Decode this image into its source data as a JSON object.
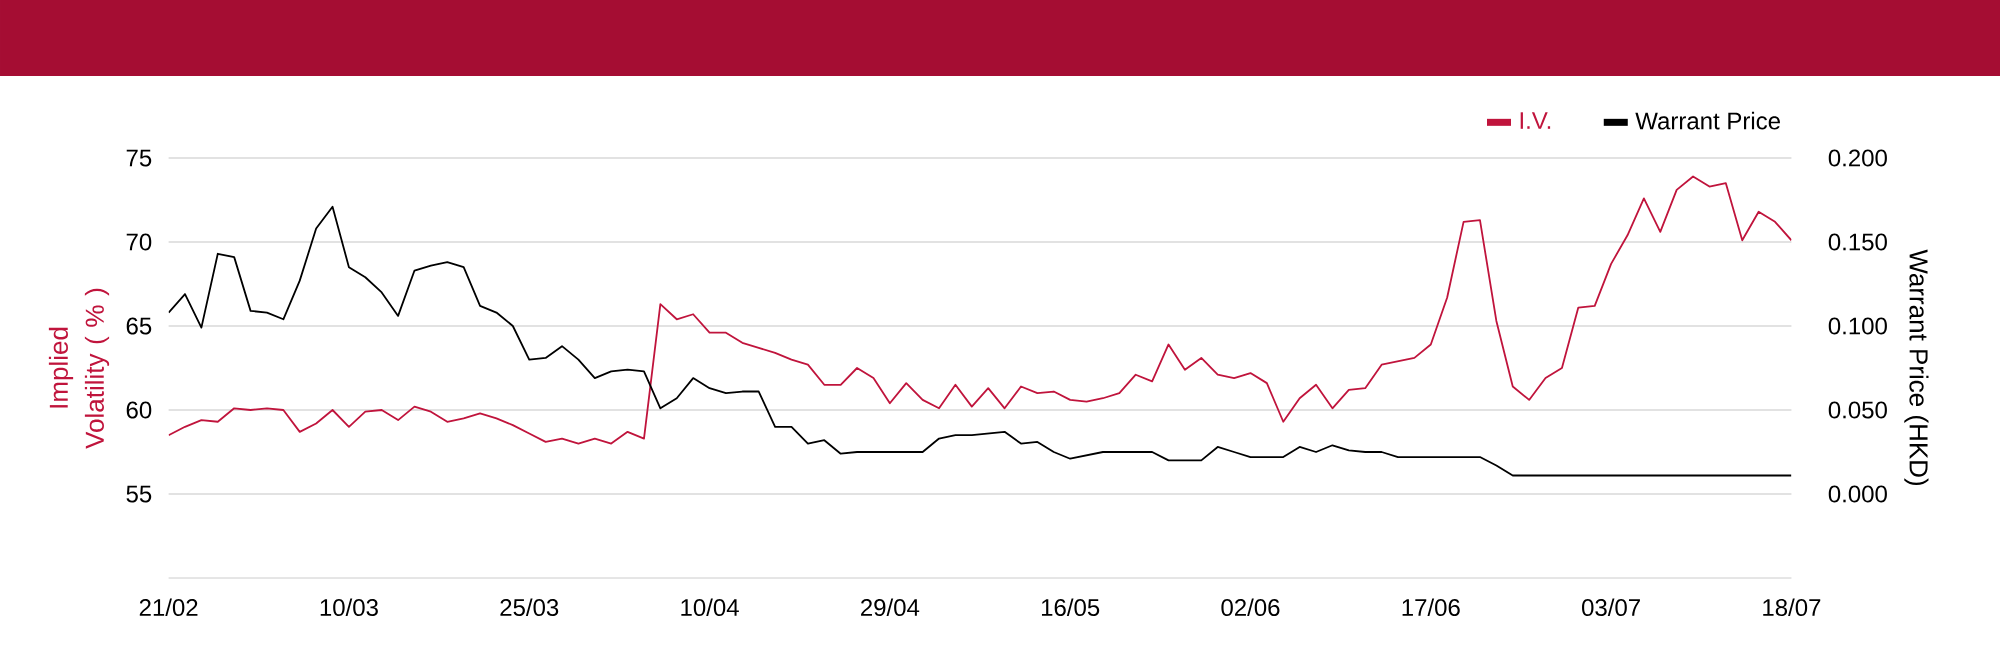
{
  "chart_data": {
    "type": "line",
    "categories": [
      "21/02",
      null,
      null,
      null,
      null,
      null,
      null,
      null,
      null,
      null,
      null,
      "10/03",
      null,
      null,
      null,
      null,
      null,
      null,
      null,
      null,
      null,
      null,
      "25/03",
      null,
      null,
      null,
      null,
      null,
      null,
      null,
      null,
      null,
      null,
      "10/04",
      null,
      null,
      null,
      null,
      null,
      null,
      null,
      null,
      null,
      null,
      "29/04",
      null,
      null,
      null,
      null,
      null,
      null,
      null,
      null,
      null,
      null,
      "16/05",
      null,
      null,
      null,
      null,
      null,
      null,
      null,
      null,
      null,
      null,
      "02/06",
      null,
      null,
      null,
      null,
      null,
      null,
      null,
      null,
      null,
      null,
      "17/06",
      null,
      null,
      null,
      null,
      null,
      null,
      null,
      null,
      null,
      null,
      "03/07",
      null,
      null,
      null,
      null,
      null,
      null,
      null,
      null,
      null,
      null,
      "18/07"
    ],
    "series": [
      {
        "name": "I.V.",
        "color": "#c0143c",
        "axis": "y",
        "values": [
          58.5,
          59.0,
          59.4,
          59.3,
          60.1,
          60.0,
          60.1,
          60.0,
          58.7,
          59.2,
          60.0,
          59.0,
          59.9,
          60.0,
          59.4,
          60.2,
          59.9,
          59.3,
          59.5,
          59.8,
          59.5,
          59.1,
          58.6,
          58.1,
          58.3,
          58.0,
          58.3,
          58.0,
          58.7,
          58.3,
          66.3,
          65.4,
          65.7,
          64.6,
          64.6,
          64.0,
          63.7,
          63.4,
          63.0,
          62.7,
          61.5,
          61.5,
          62.5,
          61.9,
          60.4,
          61.6,
          60.6,
          60.1,
          61.5,
          60.2,
          61.3,
          60.1,
          61.4,
          61.0,
          61.1,
          60.6,
          60.5,
          60.7,
          61.0,
          62.1,
          61.7,
          63.9,
          62.4,
          63.1,
          62.1,
          61.9,
          62.2,
          61.6,
          59.3,
          60.7,
          61.5,
          60.1,
          61.2,
          61.3,
          62.7,
          62.9,
          63.1,
          63.9,
          66.7,
          71.2,
          71.3,
          65.3,
          61.4,
          60.6,
          61.9,
          62.5,
          66.1,
          66.2,
          68.7,
          70.4,
          72.6,
          70.6,
          73.1,
          73.9,
          73.3,
          73.5,
          70.1,
          71.8,
          71.2,
          70.1
        ]
      },
      {
        "name": "Warrant Price",
        "color": "#000000",
        "axis": "y2",
        "values": [
          0.108,
          0.119,
          0.099,
          0.143,
          0.141,
          0.109,
          0.108,
          0.104,
          0.127,
          0.158,
          0.171,
          0.135,
          0.129,
          0.12,
          0.106,
          0.133,
          0.136,
          0.138,
          0.135,
          0.112,
          0.108,
          0.1,
          0.08,
          0.081,
          0.088,
          0.08,
          0.069,
          0.073,
          0.074,
          0.073,
          0.051,
          0.057,
          0.069,
          0.063,
          0.06,
          0.061,
          0.061,
          0.04,
          0.04,
          0.03,
          0.032,
          0.024,
          0.025,
          0.025,
          0.025,
          0.025,
          0.025,
          0.033,
          0.035,
          0.035,
          0.036,
          0.037,
          0.03,
          0.031,
          0.025,
          0.021,
          0.023,
          0.025,
          0.025,
          0.025,
          0.025,
          0.02,
          0.02,
          0.02,
          0.028,
          0.025,
          0.022,
          0.022,
          0.022,
          0.028,
          0.025,
          0.029,
          0.026,
          0.025,
          0.025,
          0.022,
          0.022,
          0.022,
          0.022,
          0.022,
          0.022,
          0.017,
          0.011,
          0.011,
          0.011,
          0.011,
          0.011,
          0.011,
          0.011,
          0.011,
          0.011,
          0.011,
          0.011,
          0.011,
          0.011,
          0.011,
          0.011,
          0.011,
          0.011,
          0.011
        ]
      }
    ],
    "ylabel": "Implied Volatility ( % )",
    "y2label": "Warrant Price (HKD)",
    "ylim": [
      50,
      75
    ],
    "yticks": [
      55,
      60,
      65,
      70,
      75
    ],
    "y2lim": [
      -0.05,
      0.2
    ],
    "y2ticks": [
      {
        "value": 0,
        "label": "0.000"
      },
      {
        "value": 0.05,
        "label": "0.050"
      },
      {
        "value": 0.1,
        "label": "0.100"
      },
      {
        "value": 0.15,
        "label": "0.150"
      },
      {
        "value": 0.2,
        "label": "0.200"
      }
    ],
    "grid": "y",
    "legend": "top right",
    "line_style": "solid"
  }
}
